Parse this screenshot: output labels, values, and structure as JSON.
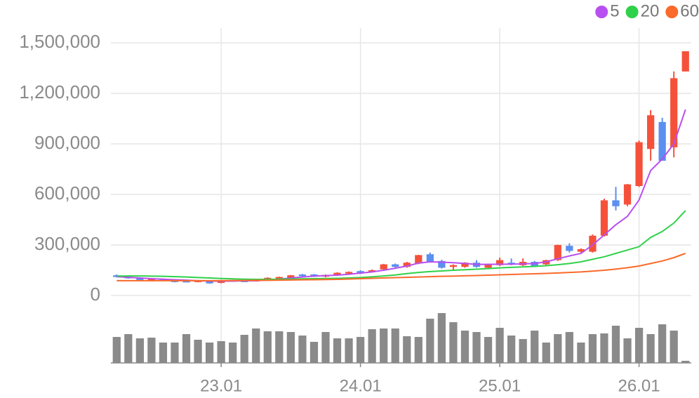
{
  "chart_data": {
    "type": "candlestick",
    "categories": [
      null,
      null,
      null,
      null,
      null,
      null,
      null,
      null,
      null,
      "23.01",
      null,
      null,
      null,
      null,
      null,
      null,
      null,
      null,
      null,
      null,
      null,
      "24.01",
      null,
      null,
      null,
      null,
      null,
      null,
      null,
      null,
      null,
      null,
      null,
      "25.01",
      null,
      null,
      null,
      null,
      null,
      null,
      null,
      null,
      null,
      null,
      null,
      "26.01",
      null,
      null,
      null,
      null
    ],
    "open": [
      120000,
      112000,
      105000,
      92000,
      100000,
      90000,
      86000,
      80000,
      88000,
      75000,
      90000,
      88000,
      85000,
      90000,
      95000,
      105000,
      125000,
      125000,
      112000,
      120000,
      130000,
      145000,
      140000,
      155000,
      185000,
      170000,
      190000,
      245000,
      205000,
      170000,
      170000,
      195000,
      165000,
      180000,
      195000,
      180000,
      200000,
      185000,
      210000,
      295000,
      260000,
      260000,
      355000,
      565000,
      540000,
      650000,
      870000,
      1030000,
      880000,
      1330000
    ],
    "high": [
      125000,
      116000,
      108000,
      103000,
      102000,
      94000,
      90000,
      92000,
      90000,
      93000,
      94000,
      92000,
      95000,
      108000,
      112000,
      122000,
      128000,
      128000,
      125000,
      138000,
      143000,
      150000,
      155000,
      188000,
      190000,
      200000,
      242000,
      255000,
      212000,
      185000,
      198000,
      210000,
      190000,
      225000,
      220000,
      220000,
      205000,
      212000,
      302000,
      310000,
      280000,
      362000,
      575000,
      645000,
      662000,
      920000,
      1100000,
      1055000,
      1330000,
      1450000
    ],
    "low": [
      108000,
      100000,
      90000,
      88000,
      86000,
      78000,
      80000,
      78000,
      70000,
      72000,
      82000,
      80000,
      82000,
      88000,
      92000,
      100000,
      112000,
      110000,
      108000,
      116000,
      126000,
      128000,
      136000,
      150000,
      165000,
      165000,
      186000,
      195000,
      160000,
      150000,
      165000,
      165000,
      160000,
      175000,
      180000,
      175000,
      170000,
      180000,
      205000,
      255000,
      255000,
      255000,
      350000,
      505000,
      530000,
      645000,
      800000,
      800000,
      820000,
      1330000
    ],
    "close": [
      110000,
      102000,
      92000,
      100000,
      88000,
      80000,
      82000,
      88000,
      72000,
      90000,
      85000,
      82000,
      92000,
      105000,
      110000,
      120000,
      115000,
      112000,
      122000,
      135000,
      140000,
      132000,
      150000,
      185000,
      170000,
      195000,
      240000,
      200000,
      165000,
      180000,
      195000,
      170000,
      185000,
      210000,
      185000,
      200000,
      175000,
      210000,
      300000,
      265000,
      275000,
      355000,
      565000,
      530000,
      660000,
      910000,
      1070000,
      800000,
      1290000,
      1450000
    ],
    "up_color": "#f5513a",
    "down_color": "#5b8ff0",
    "volume": {
      "color": "#8a8a8a",
      "values": [
        37,
        41,
        35,
        36,
        29,
        29,
        41,
        33,
        29,
        31,
        29,
        40,
        49,
        45,
        45,
        44,
        39,
        30,
        44,
        35,
        35,
        37,
        48,
        49,
        49,
        38,
        37,
        63,
        71,
        58,
        46,
        44,
        37,
        50,
        39,
        34,
        46,
        29,
        41,
        44,
        29,
        41,
        42,
        53,
        35,
        50,
        41,
        55,
        46,
        3
      ]
    },
    "series": [
      {
        "name": "5",
        "color": "#b84ff0",
        "values": [
          112000,
          108000,
          104000,
          100000,
          97000,
          94000,
          91000,
          88000,
          86000,
          85000,
          86000,
          87000,
          88000,
          92000,
          97000,
          104000,
          110000,
          115000,
          118000,
          121000,
          126000,
          133000,
          140000,
          150000,
          162000,
          175000,
          192000,
          200000,
          198000,
          195000,
          190000,
          185000,
          185000,
          186000,
          186000,
          188000,
          190000,
          200000,
          218000,
          235000,
          250000,
          300000,
          360000,
          420000,
          470000,
          567000,
          742000,
          810000,
          900000,
          1104000
        ]
      },
      {
        "name": "20",
        "color": "#2fd14a",
        "values": [
          115000,
          116000,
          116000,
          115000,
          114000,
          112000,
          110000,
          107000,
          104000,
          101000,
          99000,
          97000,
          96000,
          96000,
          97000,
          98000,
          99000,
          100000,
          101000,
          102000,
          104000,
          107000,
          111000,
          116000,
          122000,
          130000,
          137000,
          142000,
          146000,
          150000,
          153000,
          156000,
          160000,
          164000,
          167000,
          170000,
          173000,
          177000,
          183000,
          190000,
          200000,
          215000,
          230000,
          250000,
          270000,
          290000,
          345000,
          380000,
          430000,
          504000
        ]
      },
      {
        "name": "60",
        "color": "#fa6a2a",
        "values": [
          88000,
          88000,
          88000,
          88000,
          88000,
          88000,
          88000,
          88000,
          88000,
          88000,
          89000,
          89000,
          90000,
          90000,
          91000,
          92000,
          93000,
          94000,
          95000,
          96000,
          98000,
          100000,
          102000,
          104000,
          106000,
          108000,
          110000,
          112000,
          114000,
          115000,
          117000,
          119000,
          121000,
          123000,
          125000,
          127000,
          129000,
          131000,
          134000,
          137000,
          140000,
          145000,
          150000,
          157000,
          165000,
          175000,
          190000,
          205000,
          225000,
          250000
        ]
      }
    ],
    "ylim": [
      0,
      1500000
    ],
    "yticks": [
      0,
      {
        "value": 300000,
        "label": "300,000"
      },
      {
        "value": 600000,
        "label": "600,000"
      },
      {
        "value": 900000,
        "label": "900,000"
      },
      {
        "value": 1200000,
        "label": "1,200,000"
      },
      {
        "value": 1500000,
        "label": "1,500,000"
      }
    ],
    "grid": true,
    "legend": "top-right"
  }
}
